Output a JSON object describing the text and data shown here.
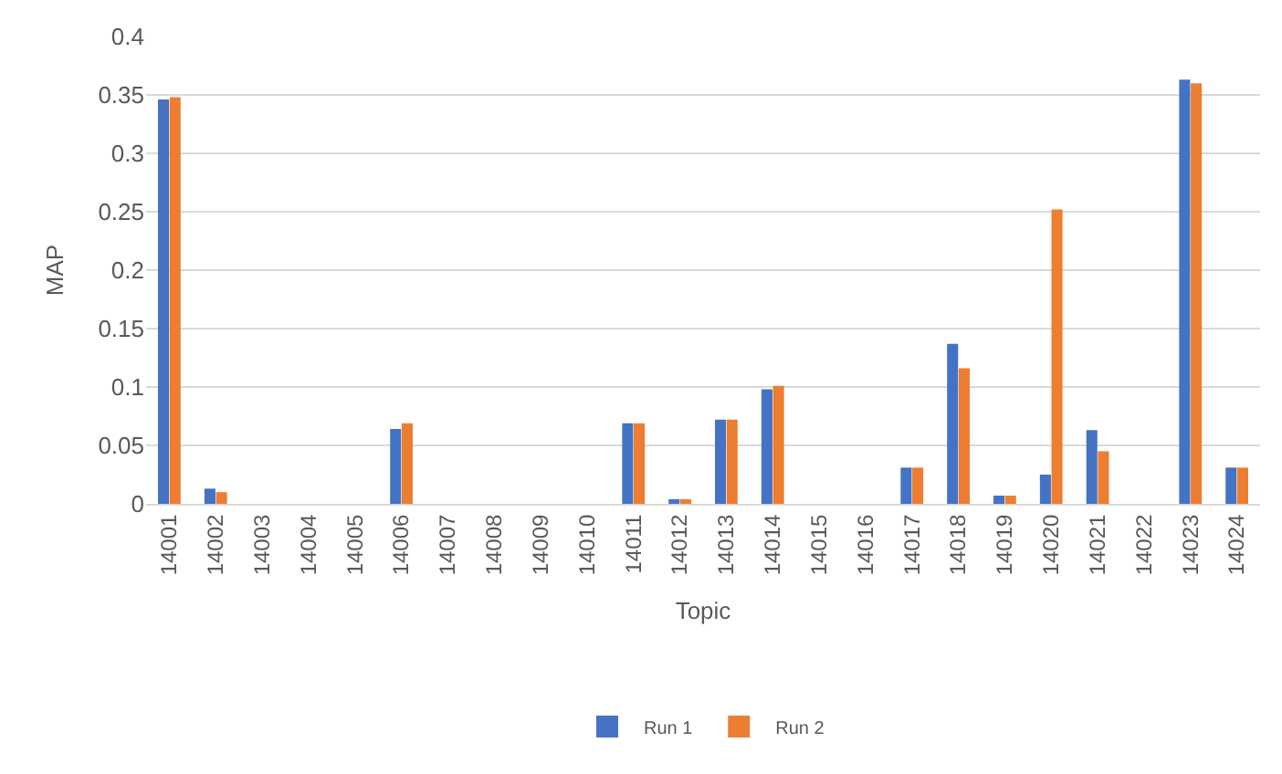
{
  "chart_data": {
    "type": "bar",
    "xlabel": "Topic",
    "ylabel": "MAP",
    "categories": [
      "14001",
      "14002",
      "14003",
      "14004",
      "14005",
      "14006",
      "14007",
      "14008",
      "14009",
      "14010",
      "14011",
      "14012",
      "14013",
      "14014",
      "14015",
      "14016",
      "14017",
      "14018",
      "14019",
      "14020",
      "14021",
      "14022",
      "14023",
      "14024"
    ],
    "series": [
      {
        "name": "Run 1",
        "color": "#4472c4",
        "values": [
          0.346,
          0.013,
          0,
          0,
          0,
          0.064,
          0,
          0,
          0,
          0,
          0.069,
          0.004,
          0.072,
          0.098,
          0,
          0,
          0.031,
          0.137,
          0.007,
          0.025,
          0.063,
          0,
          0.363,
          0.031
        ]
      },
      {
        "name": "Run 2",
        "color": "#ed7d31",
        "values": [
          0.348,
          0.01,
          0,
          0,
          0,
          0.069,
          0,
          0,
          0,
          0,
          0.069,
          0.004,
          0.072,
          0.101,
          0,
          0,
          0.031,
          0.116,
          0.007,
          0.252,
          0.045,
          0,
          0.36,
          0.031
        ]
      }
    ],
    "ylim": [
      0,
      0.4
    ],
    "yticks": [
      0,
      0.05,
      0.1,
      0.15,
      0.2,
      0.25,
      0.3,
      0.35,
      0.4
    ],
    "grid": "y",
    "legend": "bottom"
  }
}
